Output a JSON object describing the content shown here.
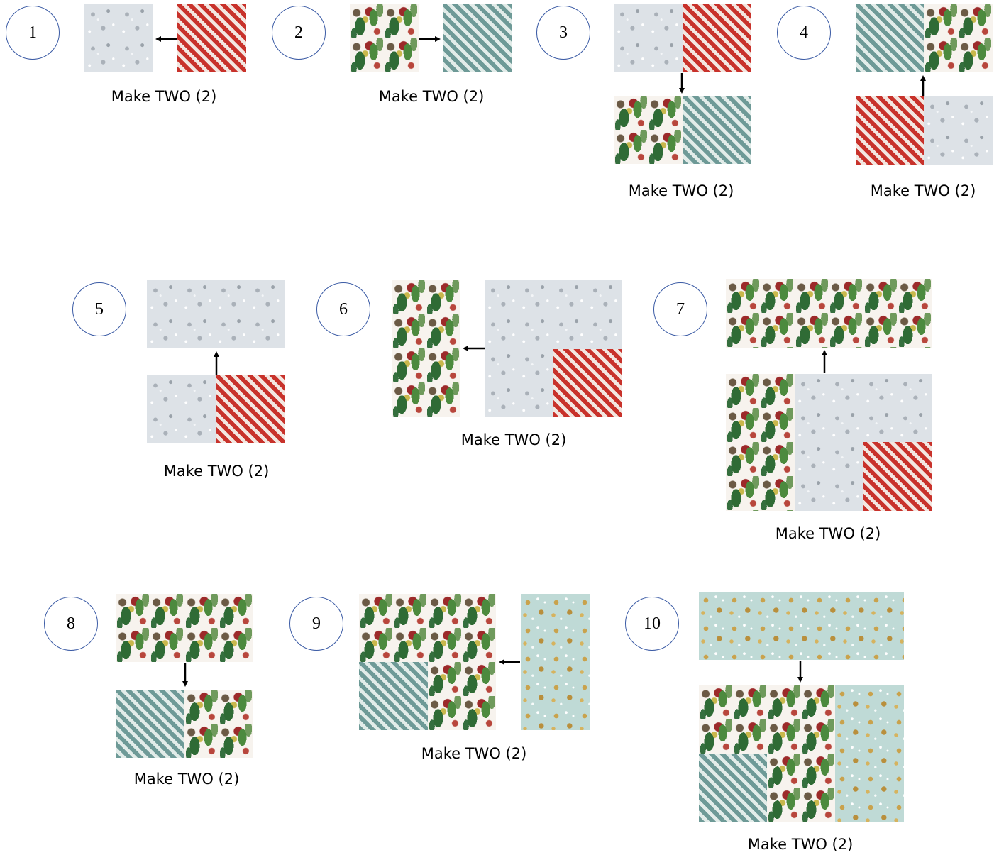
{
  "caption": "Make TWO (2)",
  "steps": [
    {
      "number": "1",
      "caption": "Make TWO (2)"
    },
    {
      "number": "2",
      "caption": "Make TWO (2)"
    },
    {
      "number": "3",
      "caption": "Make TWO (2)"
    },
    {
      "number": "4",
      "caption": "Make TWO (2)"
    },
    {
      "number": "5",
      "caption": "Make TWO (2)"
    },
    {
      "number": "6",
      "caption": "Make TWO (2)"
    },
    {
      "number": "7",
      "caption": "Make TWO (2)"
    },
    {
      "number": "8",
      "caption": "Make TWO (2)"
    },
    {
      "number": "9",
      "caption": "Make TWO (2)"
    },
    {
      "number": "10",
      "caption": "Make TWO (2)"
    }
  ],
  "fabrics": {
    "stars": "silver star print",
    "red": "red diagonal stripe",
    "teal": "teal diagonal stripe",
    "floral": "holiday botanical print",
    "gold": "gold stars on aqua"
  }
}
